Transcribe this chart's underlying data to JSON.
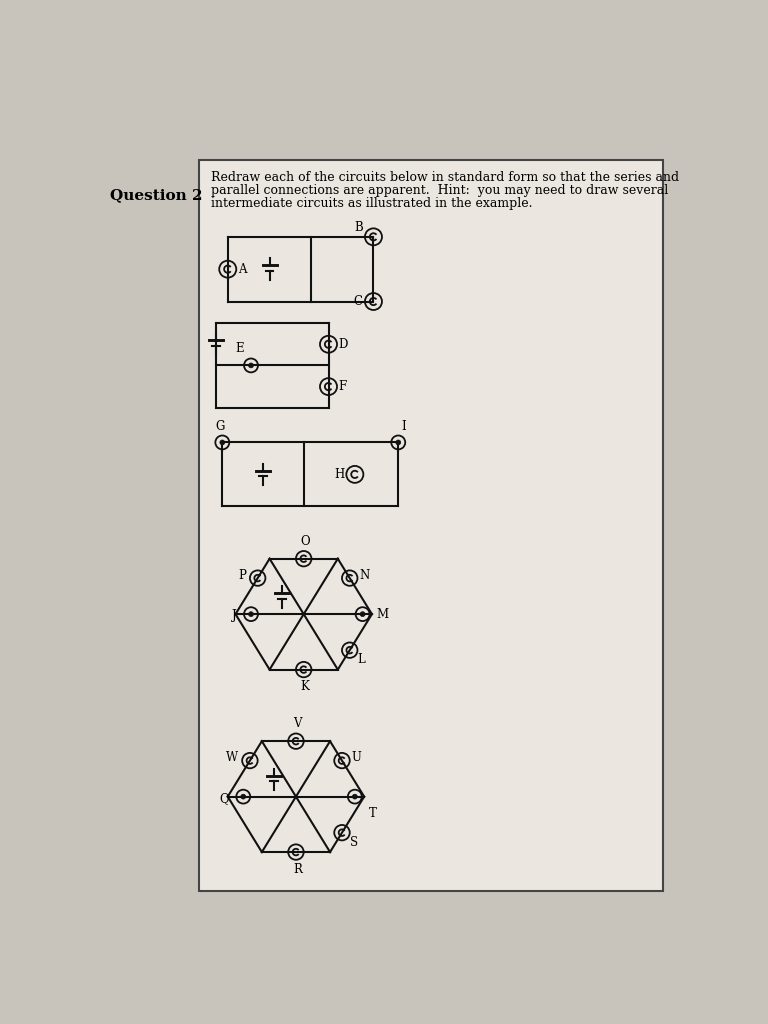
{
  "bg_color": "#c8c3bb",
  "box_color": "#ebe7e0",
  "box_border": "#222222",
  "line_color": "#111111",
  "title": "Question 2",
  "question_text_line1": "Redraw each of the circuits below in standard form so that the series and",
  "question_text_line2": "parallel connections are apparent.  Hint:  you may need to draw several",
  "question_text_line3": "intermediate circuits as illustrated in the example.",
  "font_family": "DejaVu Serif"
}
